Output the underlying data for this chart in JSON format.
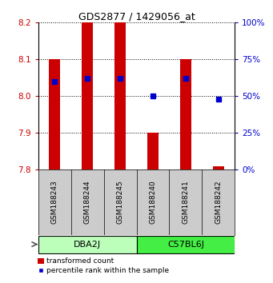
{
  "title": "GDS2877 / 1429056_at",
  "samples": [
    "GSM188243",
    "GSM188244",
    "GSM188245",
    "GSM188240",
    "GSM188241",
    "GSM188242"
  ],
  "bar_bottoms": [
    7.8,
    7.8,
    7.8,
    7.8,
    7.8,
    7.8
  ],
  "bar_tops": [
    8.1,
    8.2,
    8.2,
    7.9,
    8.1,
    7.81
  ],
  "percentiles": [
    60,
    62,
    62,
    50,
    62,
    48
  ],
  "ylim_left": [
    7.8,
    8.2
  ],
  "ylim_right": [
    0,
    100
  ],
  "yticks_left": [
    7.8,
    7.9,
    8.0,
    8.1,
    8.2
  ],
  "yticks_right": [
    0,
    25,
    50,
    75,
    100
  ],
  "bar_color": "#cc0000",
  "dot_color": "#0000cc",
  "strains": [
    "DBA2J",
    "C57BL6J"
  ],
  "strain_sample_counts": [
    3,
    3
  ],
  "strain_colors": [
    "#bbffbb",
    "#44ee44"
  ],
  "grid_color": "#000000",
  "bg_color": "#ffffff",
  "label_color_left": "#cc0000",
  "label_color_right": "#0000cc",
  "sample_box_color": "#cccccc"
}
